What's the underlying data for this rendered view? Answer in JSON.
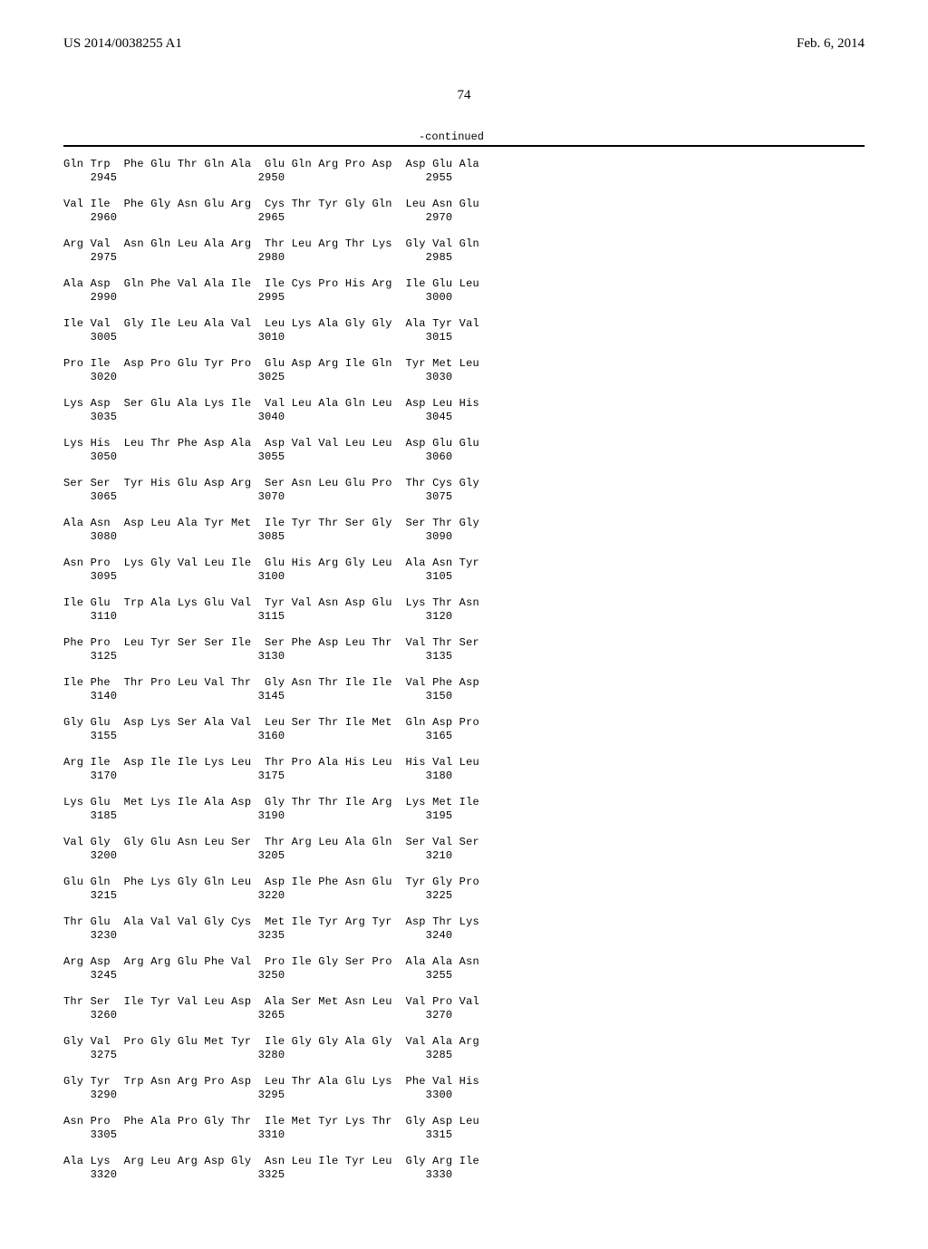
{
  "header": {
    "left": "US 2014/0038255 A1",
    "right": "Feb. 6, 2014"
  },
  "page_number": "74",
  "continued_label": "-continued",
  "blocks": [
    {
      "aa": "Gln Trp  Phe Glu Thr Gln Ala  Glu Gln Arg Pro Asp  Asp Glu Ala",
      "nums": "    2945                     2950                     2955"
    },
    {
      "aa": "Val Ile  Phe Gly Asn Glu Arg  Cys Thr Tyr Gly Gln  Leu Asn Glu",
      "nums": "    2960                     2965                     2970"
    },
    {
      "aa": "Arg Val  Asn Gln Leu Ala Arg  Thr Leu Arg Thr Lys  Gly Val Gln",
      "nums": "    2975                     2980                     2985"
    },
    {
      "aa": "Ala Asp  Gln Phe Val Ala Ile  Ile Cys Pro His Arg  Ile Glu Leu",
      "nums": "    2990                     2995                     3000"
    },
    {
      "aa": "Ile Val  Gly Ile Leu Ala Val  Leu Lys Ala Gly Gly  Ala Tyr Val",
      "nums": "    3005                     3010                     3015"
    },
    {
      "aa": "Pro Ile  Asp Pro Glu Tyr Pro  Glu Asp Arg Ile Gln  Tyr Met Leu",
      "nums": "    3020                     3025                     3030"
    },
    {
      "aa": "Lys Asp  Ser Glu Ala Lys Ile  Val Leu Ala Gln Leu  Asp Leu His",
      "nums": "    3035                     3040                     3045"
    },
    {
      "aa": "Lys His  Leu Thr Phe Asp Ala  Asp Val Val Leu Leu  Asp Glu Glu",
      "nums": "    3050                     3055                     3060"
    },
    {
      "aa": "Ser Ser  Tyr His Glu Asp Arg  Ser Asn Leu Glu Pro  Thr Cys Gly",
      "nums": "    3065                     3070                     3075"
    },
    {
      "aa": "Ala Asn  Asp Leu Ala Tyr Met  Ile Tyr Thr Ser Gly  Ser Thr Gly",
      "nums": "    3080                     3085                     3090"
    },
    {
      "aa": "Asn Pro  Lys Gly Val Leu Ile  Glu His Arg Gly Leu  Ala Asn Tyr",
      "nums": "    3095                     3100                     3105"
    },
    {
      "aa": "Ile Glu  Trp Ala Lys Glu Val  Tyr Val Asn Asp Glu  Lys Thr Asn",
      "nums": "    3110                     3115                     3120"
    },
    {
      "aa": "Phe Pro  Leu Tyr Ser Ser Ile  Ser Phe Asp Leu Thr  Val Thr Ser",
      "nums": "    3125                     3130                     3135"
    },
    {
      "aa": "Ile Phe  Thr Pro Leu Val Thr  Gly Asn Thr Ile Ile  Val Phe Asp",
      "nums": "    3140                     3145                     3150"
    },
    {
      "aa": "Gly Glu  Asp Lys Ser Ala Val  Leu Ser Thr Ile Met  Gln Asp Pro",
      "nums": "    3155                     3160                     3165"
    },
    {
      "aa": "Arg Ile  Asp Ile Ile Lys Leu  Thr Pro Ala His Leu  His Val Leu",
      "nums": "    3170                     3175                     3180"
    },
    {
      "aa": "Lys Glu  Met Lys Ile Ala Asp  Gly Thr Thr Ile Arg  Lys Met Ile",
      "nums": "    3185                     3190                     3195"
    },
    {
      "aa": "Val Gly  Gly Glu Asn Leu Ser  Thr Arg Leu Ala Gln  Ser Val Ser",
      "nums": "    3200                     3205                     3210"
    },
    {
      "aa": "Glu Gln  Phe Lys Gly Gln Leu  Asp Ile Phe Asn Glu  Tyr Gly Pro",
      "nums": "    3215                     3220                     3225"
    },
    {
      "aa": "Thr Glu  Ala Val Val Gly Cys  Met Ile Tyr Arg Tyr  Asp Thr Lys",
      "nums": "    3230                     3235                     3240"
    },
    {
      "aa": "Arg Asp  Arg Arg Glu Phe Val  Pro Ile Gly Ser Pro  Ala Ala Asn",
      "nums": "    3245                     3250                     3255"
    },
    {
      "aa": "Thr Ser  Ile Tyr Val Leu Asp  Ala Ser Met Asn Leu  Val Pro Val",
      "nums": "    3260                     3265                     3270"
    },
    {
      "aa": "Gly Val  Pro Gly Glu Met Tyr  Ile Gly Gly Ala Gly  Val Ala Arg",
      "nums": "    3275                     3280                     3285"
    },
    {
      "aa": "Gly Tyr  Trp Asn Arg Pro Asp  Leu Thr Ala Glu Lys  Phe Val His",
      "nums": "    3290                     3295                     3300"
    },
    {
      "aa": "Asn Pro  Phe Ala Pro Gly Thr  Ile Met Tyr Lys Thr  Gly Asp Leu",
      "nums": "    3305                     3310                     3315"
    },
    {
      "aa": "Ala Lys  Arg Leu Arg Asp Gly  Asn Leu Ile Tyr Leu  Gly Arg Ile",
      "nums": "    3320                     3325                     3330"
    }
  ]
}
